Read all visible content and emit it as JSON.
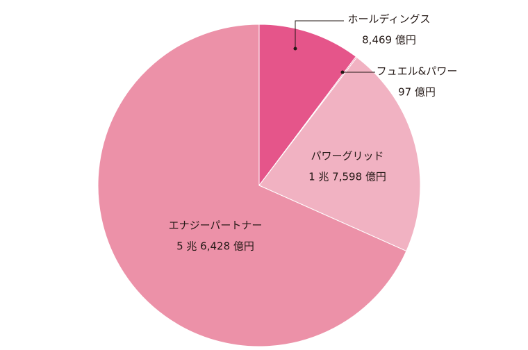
{
  "chart_data": {
    "type": "pie",
    "categories": [
      "ホールディングス",
      "フュエル&パワー",
      "パワーグリッド",
      "エナジーパートナー"
    ],
    "values": [
      8469,
      97,
      17598,
      56428
    ],
    "value_labels": [
      "8,469 億円",
      "97 億円",
      "1 兆 7,598 億円",
      "5 兆 6,428 億円"
    ],
    "colors": [
      "#e5558a",
      "#e9789e",
      "#f1b2c2",
      "#ec91a8"
    ]
  }
}
